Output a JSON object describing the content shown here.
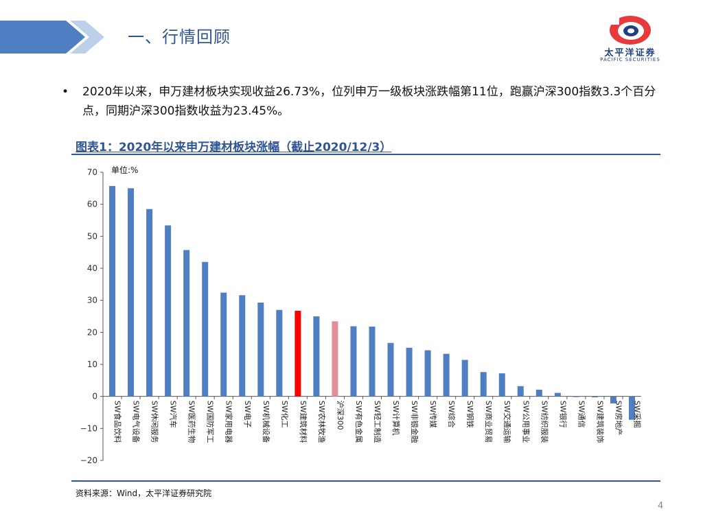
{
  "header": {
    "title": "一、行情回顾"
  },
  "logo": {
    "name_cn": "太平洋证券",
    "name_en": "PACIFIC SECURITIES"
  },
  "bullet": {
    "symbol": "•",
    "text": "2020年以来，申万建材板块实现收益26.73%，位列申万一级板块涨跌幅第11位，跑赢沪深300指数3.3个百分点，同期沪深300指数收益为23.45%。"
  },
  "chart_title": "图表1：2020年以来申万建材板块涨幅（截止2020/12/3）",
  "chart_data": {
    "type": "bar",
    "unit_label": "单位:%",
    "categories": [
      "SW食品饮料",
      "SW电气设备",
      "SW休闲服务",
      "SW汽车",
      "SW医药生物",
      "SW国防军工",
      "SW家用电器",
      "SW电子",
      "SW机械设备",
      "SW化工",
      "SW建筑材料",
      "SW农林牧渔",
      "沪深300",
      "SW有色金属",
      "SW轻工制造",
      "SW计算机",
      "SW非银金融",
      "SW传媒",
      "SW综合",
      "SW钢铁",
      "SW商业贸易",
      "SW交通运输",
      "SW公用事业",
      "SW纺织服装",
      "SW银行",
      "SW通信",
      "SW建筑装饰",
      "SW房地产",
      "SW采掘"
    ],
    "values": [
      65.7,
      65.0,
      58.5,
      53.4,
      45.7,
      42.0,
      32.4,
      31.6,
      29.3,
      27.0,
      26.73,
      25.0,
      23.45,
      21.9,
      21.8,
      16.7,
      15.2,
      14.4,
      13.3,
      11.4,
      7.6,
      7.2,
      3.2,
      2.1,
      1.1,
      0.0,
      -0.3,
      -2.2,
      -7.3
    ],
    "ylim": [
      -20,
      70
    ],
    "yticks": [
      -20,
      -10,
      0,
      10,
      20,
      30,
      40,
      50,
      60,
      70
    ],
    "colors": {
      "default": "#4f7fc2",
      "highlight": "#ff0000",
      "benchmark": "#e0909a"
    },
    "highlight_index": 10,
    "benchmark_index": 12
  },
  "source": "资料来源：Wind，太平洋证券研究院",
  "page_number": "4"
}
